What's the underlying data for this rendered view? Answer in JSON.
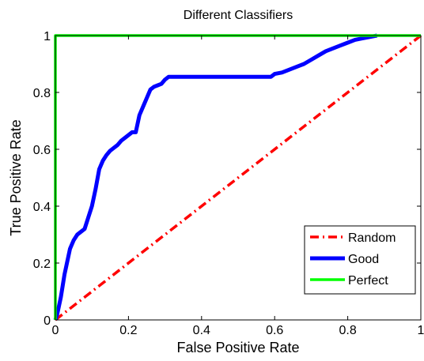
{
  "chart_data": {
    "type": "line",
    "title": "Different Classifiers",
    "xlabel": "False Positive Rate",
    "ylabel": "True Positive Rate",
    "xlim": [
      0,
      1
    ],
    "ylim": [
      0,
      1
    ],
    "xticks": [
      0,
      0.2,
      0.4,
      0.6,
      0.8,
      1
    ],
    "yticks": [
      0,
      0.2,
      0.4,
      0.6,
      0.8,
      1
    ],
    "xtick_labels": [
      "0",
      "0.2",
      "0.4",
      "0.6",
      "0.8",
      "1"
    ],
    "ytick_labels": [
      "0",
      "0.2",
      "0.4",
      "0.6",
      "0.8",
      "1"
    ],
    "grid": false,
    "legend_position": "lower-right",
    "series": [
      {
        "name": "Random",
        "color": "#ff0000",
        "line_style": "dash-dot",
        "x": [
          0,
          1
        ],
        "y": [
          0,
          1
        ]
      },
      {
        "name": "Good",
        "color": "#0000ff",
        "line_style": "solid",
        "x": [
          0,
          0.005,
          0.01,
          0.015,
          0.02,
          0.025,
          0.03,
          0.035,
          0.04,
          0.05,
          0.06,
          0.07,
          0.08,
          0.09,
          0.1,
          0.11,
          0.12,
          0.13,
          0.14,
          0.15,
          0.16,
          0.17,
          0.18,
          0.19,
          0.2,
          0.21,
          0.22,
          0.23,
          0.24,
          0.25,
          0.26,
          0.27,
          0.28,
          0.29,
          0.3,
          0.31,
          0.32,
          0.33,
          0.34,
          0.36,
          0.4,
          0.45,
          0.5,
          0.55,
          0.59,
          0.6,
          0.62,
          0.64,
          0.66,
          0.68,
          0.7,
          0.72,
          0.74,
          0.76,
          0.78,
          0.8,
          0.82,
          0.84,
          0.86,
          0.88
        ],
        "y": [
          0,
          0.02,
          0.05,
          0.08,
          0.12,
          0.16,
          0.19,
          0.22,
          0.25,
          0.28,
          0.3,
          0.31,
          0.32,
          0.36,
          0.4,
          0.46,
          0.53,
          0.56,
          0.58,
          0.595,
          0.605,
          0.615,
          0.63,
          0.64,
          0.65,
          0.66,
          0.66,
          0.72,
          0.75,
          0.78,
          0.81,
          0.82,
          0.825,
          0.83,
          0.845,
          0.855,
          0.855,
          0.855,
          0.855,
          0.855,
          0.855,
          0.855,
          0.855,
          0.855,
          0.855,
          0.865,
          0.87,
          0.88,
          0.89,
          0.9,
          0.915,
          0.93,
          0.945,
          0.955,
          0.965,
          0.975,
          0.985,
          0.99,
          0.995,
          1.0
        ]
      },
      {
        "name": "Perfect",
        "color": "#00ff00",
        "line_style": "solid",
        "x": [
          0,
          0,
          1
        ],
        "y": [
          0,
          1,
          1
        ]
      }
    ]
  }
}
